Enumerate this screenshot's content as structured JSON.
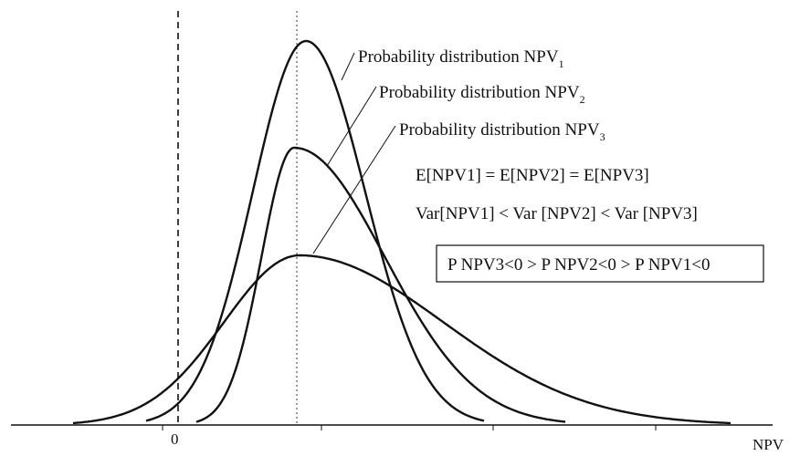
{
  "diagram": {
    "x_axis_label": "NPV",
    "zero_label": "0",
    "distributions": [
      {
        "name": "Probability distribution NPV",
        "sub": "1"
      },
      {
        "name": "Probability distribution NPV",
        "sub": "2"
      },
      {
        "name": "Probability distribution NPV",
        "sub": "3"
      }
    ],
    "equations": {
      "expectations": "E[NPV1] = E[NPV2] = E[NPV3]",
      "variances": "Var[NPV1] < Var [NPV2] < Var [NPV3]",
      "probabilities": "P NPV3<0 > P NPV2<0 > P NPV1<0"
    },
    "colors": {
      "ink": "#111111",
      "background": "#ffffff"
    }
  }
}
